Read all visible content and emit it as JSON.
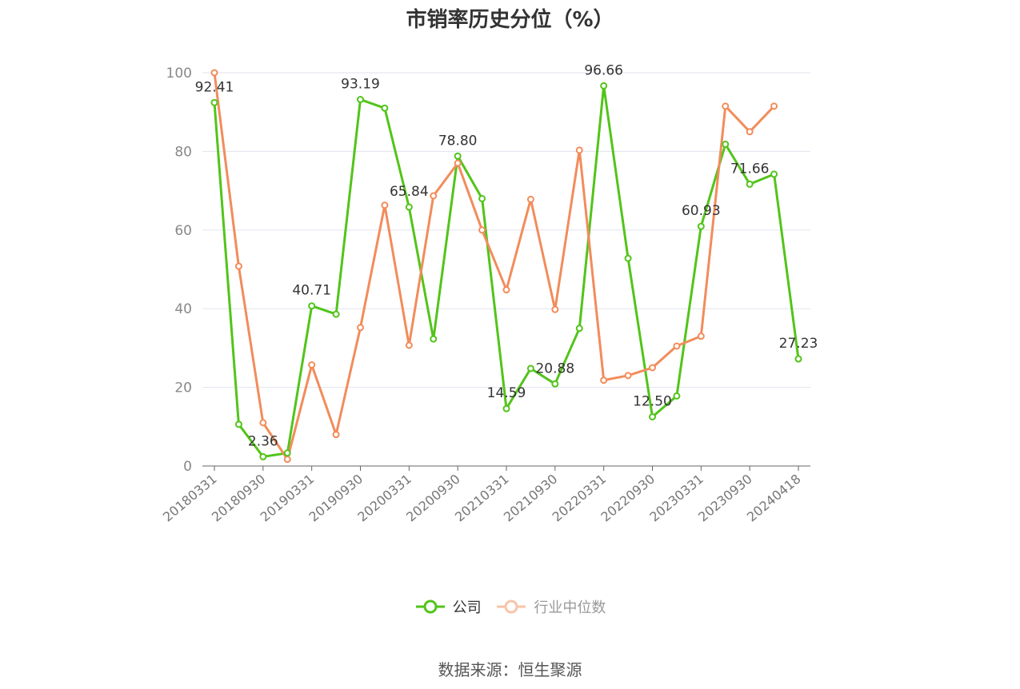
{
  "title": "市销率历史分位（%）",
  "source": "数据来源：恒生聚源",
  "chart_data": {
    "type": "line",
    "ylim": [
      0,
      100
    ],
    "yticks": [
      0,
      20,
      40,
      60,
      80,
      100
    ],
    "grid": true,
    "legend_position": "bottom-center",
    "x": [
      "20180331",
      "20180630",
      "20180930",
      "20181231",
      "20190331",
      "20190630",
      "20190930",
      "20191231",
      "20200331",
      "20200630",
      "20200930",
      "20201231",
      "20210331",
      "20210630",
      "20210930",
      "20211231",
      "20220331",
      "20220630",
      "20220930",
      "20221231",
      "20230331",
      "20230630",
      "20230930",
      "20231231",
      "20240418"
    ],
    "xtick_labels": [
      "20180331",
      "20180930",
      "20190331",
      "20190930",
      "20200331",
      "20200930",
      "20210331",
      "20210930",
      "20220331",
      "20220930",
      "20230331",
      "20230930",
      "20240418"
    ],
    "series": [
      {
        "name": "公司",
        "color": "#52c41a",
        "values": [
          92.41,
          10.6,
          2.36,
          3.3,
          40.71,
          38.6,
          93.19,
          91.0,
          65.84,
          32.3,
          78.8,
          68.0,
          14.59,
          24.8,
          20.88,
          35.0,
          96.66,
          52.8,
          12.5,
          17.8,
          60.93,
          81.8,
          71.66,
          74.2,
          27.23
        ],
        "labels": {
          "0": "92.41",
          "2": "2.36",
          "4": "40.71",
          "6": "93.19",
          "8": "65.84",
          "10": "78.80",
          "12": "14.59",
          "14": "20.88",
          "16": "96.66",
          "18": "12.50",
          "20": "60.93",
          "22": "71.66",
          "24": "27.23"
        }
      },
      {
        "name": "行业中位数",
        "color": "#f28c5b",
        "values": [
          100.0,
          50.8,
          11.0,
          1.7,
          25.7,
          8.0,
          35.2,
          66.3,
          30.7,
          68.7,
          77.0,
          60.0,
          44.8,
          67.8,
          39.8,
          80.3,
          21.8,
          23.0,
          25.0,
          30.5,
          33.0,
          91.5,
          85.0,
          91.5,
          null
        ]
      }
    ]
  }
}
